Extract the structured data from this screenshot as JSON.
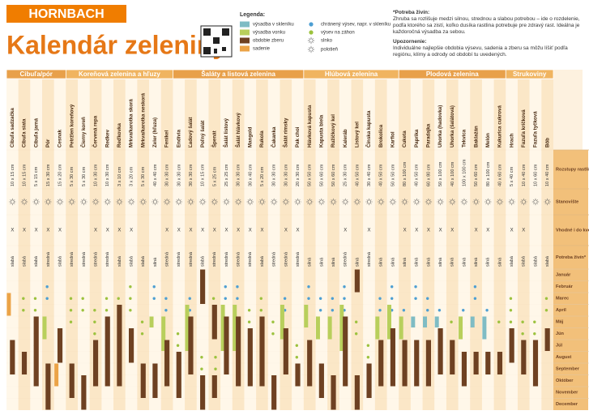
{
  "header": {
    "brand": "HORNBACH",
    "title": "Kalendár zeleniny"
  },
  "legend": {
    "title": "Legenda:",
    "items": [
      {
        "label": "výsadba v skleníku",
        "color": "#7fbcc4"
      },
      {
        "label": "výsadba vonku",
        "color": "#b8cf5c"
      },
      {
        "label": "obdobie zberu",
        "color": "#6e4122"
      },
      {
        "label": "sadenie",
        "color": "#eba347"
      },
      {
        "label": "chránený výsev, napr. v skleníku",
        "color": "#4d9fd3"
      },
      {
        "label": "výsev na záhon",
        "color": "#9cc23e"
      }
    ],
    "icons": [
      "slnko",
      "polotieň"
    ]
  },
  "notes": {
    "need_title": "*Potreba živín:",
    "need_text": "Zhruba sa rozlišuje medzi silnou, strednou a slabou potrebou – ide o rozdelenie, podľa ktorého sa zistí, koľko dusíka rastlina potrebuje pre zdravý rast. Ideálna je každoročná výsadba za sebou.",
    "warn_title": "Upozornenie:",
    "warn_text": "Individuálne najlepšie obdobia výsevu, sadenia a zberu sa môžu líšiť podľa regiónu, klímy a odrody od období tu uvedených."
  },
  "rows": {
    "spacing": "Rozstupy rastlín (spon)",
    "location": "Stanovište",
    "pot": "Vhodné i do kvetináča (X = áno)",
    "need": "Potreba živín*",
    "months": [
      "Január",
      "Február",
      "Marec",
      "Apríl",
      "Máj",
      "Jún",
      "Júl",
      "August",
      "September",
      "Október",
      "November",
      "December"
    ]
  },
  "groups": [
    {
      "name": "Cibuľa/pór",
      "columns": [
        {
          "name": "Cibuľa sadzačka",
          "spacing": "10 x 15 cm",
          "pot": "X",
          "need": "slabá",
          "periods": [
            [
              3,
              3,
              4
            ],
            [
              2,
              7,
              9
            ]
          ]
        },
        {
          "name": "Cibuľa siata",
          "spacing": "10 x 15 cm",
          "pot": "X",
          "need": "slabá",
          "periods": [
            [
              5,
              3,
              4
            ],
            [
              2,
              8,
              9
            ]
          ]
        },
        {
          "name": "Cibuľa jarná",
          "spacing": "5 x 15 cm",
          "pot": "X",
          "need": "slabá",
          "periods": [
            [
              5,
              3,
              8
            ],
            [
              2,
              5,
              10
            ]
          ]
        },
        {
          "name": "Pór",
          "spacing": "15 x 30 cm",
          "pot": "X",
          "need": "stredná",
          "periods": [
            [
              4,
              2,
              3
            ],
            [
              1,
              5,
              6
            ],
            [
              2,
              9,
              12
            ]
          ]
        },
        {
          "name": "Cesnak",
          "spacing": "15 x 20 cm",
          "pot": "X",
          "need": "slabá",
          "periods": [
            [
              3,
              9,
              10
            ],
            [
              2,
              6,
              8
            ]
          ]
        }
      ]
    },
    {
      "name": "Koreňová zelenina a hľuzy",
      "columns": [
        {
          "name": "Petržlen koreňový",
          "spacing": "5 x 30 cm",
          "pot": null,
          "need": "stredná",
          "periods": [
            [
              5,
              3,
              5
            ],
            [
              2,
              9,
              11
            ]
          ]
        },
        {
          "name": "Čierny koreň",
          "spacing": "5 x 30 cm",
          "pot": null,
          "need": "stredná",
          "periods": [
            [
              5,
              3,
              4
            ],
            [
              2,
              10,
              12
            ]
          ]
        },
        {
          "name": "Červená repa",
          "spacing": "10 x 30 cm",
          "pot": "X",
          "need": "stredná",
          "periods": [
            [
              5,
              4,
              6
            ],
            [
              2,
              7,
              10
            ]
          ]
        },
        {
          "name": "Redkev",
          "spacing": "10 x 30 cm",
          "pot": "X",
          "need": "stredná",
          "periods": [
            [
              5,
              3,
              8
            ],
            [
              2,
              5,
              10
            ]
          ]
        },
        {
          "name": "Reďkovka",
          "spacing": "3 x 10 cm",
          "pot": "X",
          "need": "slabá",
          "periods": [
            [
              5,
              3,
              9
            ],
            [
              2,
              4,
              10
            ]
          ]
        },
        {
          "name": "Mrkva/karotka skorá",
          "spacing": "3 x 20 cm",
          "pot": "X",
          "need": "slabá",
          "periods": [
            [
              5,
              2,
              4
            ],
            [
              2,
              6,
              8
            ]
          ]
        },
        {
          "name": "Mrkva/karotka neskorá",
          "spacing": "5 x 30 cm",
          "pot": null,
          "need": "slabá",
          "periods": [
            [
              5,
              5,
              6
            ],
            [
              2,
              9,
              11
            ]
          ]
        },
        {
          "name": "Zeler (hľuza)",
          "spacing": "40 x 40 cm",
          "pot": null,
          "need": "silná",
          "periods": [
            [
              4,
              2,
              3
            ],
            [
              1,
              5,
              5
            ],
            [
              2,
              9,
              11
            ]
          ]
        },
        {
          "name": "Fenikel",
          "spacing": "30 x 30 cm",
          "pot": "X",
          "need": "stredná",
          "periods": [
            [
              4,
              3,
              4
            ],
            [
              1,
              5,
              7
            ],
            [
              2,
              7,
              10
            ]
          ]
        }
      ]
    },
    {
      "name": "Šaláty a listová zelenina",
      "columns": [
        {
          "name": "Endívia",
          "spacing": "30 x 30 cm",
          "pot": "X",
          "need": "stredná",
          "periods": [
            [
              5,
              6,
              7
            ],
            [
              2,
              8,
              11
            ]
          ]
        },
        {
          "name": "Ľadový šalát",
          "spacing": "30 x 30 cm",
          "pot": "X",
          "need": "stredná",
          "periods": [
            [
              4,
              3,
              4
            ],
            [
              1,
              4,
              7
            ],
            [
              2,
              5,
              9
            ]
          ]
        },
        {
          "name": "Poľný šalát",
          "spacing": "10 x 15 cm",
          "pot": "X",
          "need": "slabá",
          "periods": [
            [
              5,
              8,
              9
            ],
            [
              2,
              10,
              12
            ],
            [
              2,
              1,
              3
            ]
          ]
        },
        {
          "name": "Špenát",
          "spacing": "5 x 25 cm",
          "pot": "X",
          "need": "stredná",
          "periods": [
            [
              5,
              3,
              4
            ],
            [
              5,
              8,
              9
            ],
            [
              2,
              4,
              6
            ],
            [
              2,
              10,
              11
            ]
          ]
        },
        {
          "name": "Šalát listový",
          "spacing": "25 x 25 cm",
          "pot": "X",
          "need": "stredná",
          "periods": [
            [
              4,
              2,
              3
            ],
            [
              1,
              4,
              7
            ],
            [
              2,
              5,
              9
            ]
          ]
        },
        {
          "name": "Šalát hlávkový",
          "spacing": "30 x 30 cm",
          "pot": "X",
          "need": "stredná",
          "periods": [
            [
              4,
              2,
              3
            ],
            [
              1,
              4,
              7
            ],
            [
              2,
              5,
              10
            ]
          ]
        },
        {
          "name": "Mangold",
          "spacing": "30 x 40 cm",
          "pot": "X",
          "need": "stredná",
          "periods": [
            [
              5,
              4,
              6
            ],
            [
              2,
              6,
              10
            ]
          ]
        },
        {
          "name": "Rukola",
          "spacing": "5 x 20 cm",
          "pot": "X",
          "need": "slabá",
          "periods": [
            [
              5,
              3,
              8
            ],
            [
              2,
              5,
              10
            ]
          ]
        },
        {
          "name": "Čakanka",
          "spacing": "30 x 30 cm",
          "pot": null,
          "need": "stredná",
          "periods": [
            [
              5,
              5,
              6
            ],
            [
              2,
              10,
              12
            ]
          ]
        },
        {
          "name": "Šalát rímsky",
          "spacing": "30 x 30 cm",
          "pot": "X",
          "need": "stredná",
          "periods": [
            [
              4,
              3,
              4
            ],
            [
              1,
              4,
              6
            ],
            [
              2,
              6,
              9
            ]
          ]
        },
        {
          "name": "Pak choi",
          "spacing": "20 x 30 cm",
          "pot": "X",
          "need": "stredná",
          "periods": [
            [
              5,
              7,
              8
            ],
            [
              2,
              9,
              10
            ]
          ]
        }
      ]
    },
    {
      "name": "Hlúbová zelenina",
      "columns": [
        {
          "name": "Hlávková kapusta",
          "spacing": "50 x 50 cm",
          "pot": null,
          "need": "silná",
          "periods": [
            [
              4,
              2,
              3
            ],
            [
              1,
              4,
              5
            ],
            [
              2,
              7,
              10
            ]
          ]
        },
        {
          "name": "Kapusta biela",
          "spacing": "50 x 60 cm",
          "pot": null,
          "need": "silná",
          "periods": [
            [
              4,
              3,
              4
            ],
            [
              1,
              5,
              6
            ],
            [
              2,
              9,
              11
            ]
          ]
        },
        {
          "name": "Ružičkový kel",
          "spacing": "50 x 60 cm",
          "pot": null,
          "need": "silná",
          "periods": [
            [
              4,
              3,
              4
            ],
            [
              1,
              5,
              6
            ],
            [
              2,
              10,
              12
            ]
          ]
        },
        {
          "name": "Kaleráb",
          "spacing": "25 x 30 cm",
          "pot": "X",
          "need": "stredná",
          "periods": [
            [
              4,
              2,
              4
            ],
            [
              1,
              4,
              7
            ],
            [
              2,
              5,
              10
            ]
          ]
        },
        {
          "name": "Listový kel",
          "spacing": "40 x 50 cm",
          "pot": null,
          "need": "silná",
          "periods": [
            [
              5,
              5,
              6
            ],
            [
              2,
              10,
              12
            ],
            [
              2,
              1,
              2
            ]
          ]
        },
        {
          "name": "Čínska kapusta",
          "spacing": "30 x 40 cm",
          "pot": "X",
          "need": "stredná",
          "periods": [
            [
              5,
              7,
              8
            ],
            [
              2,
              9,
              11
            ]
          ]
        },
        {
          "name": "Brokolica",
          "spacing": "40 x 50 cm",
          "pot": null,
          "need": "silná",
          "periods": [
            [
              4,
              3,
              4
            ],
            [
              1,
              5,
              6
            ],
            [
              2,
              7,
              10
            ]
          ]
        },
        {
          "name": "Karfiol",
          "spacing": "50 x 50 cm",
          "pot": null,
          "need": "silná",
          "periods": [
            [
              4,
              2,
              4
            ],
            [
              1,
              4,
              6
            ],
            [
              2,
              6,
              10
            ]
          ]
        }
      ]
    },
    {
      "name": "Plodová zelenina",
      "columns": [
        {
          "name": "Cuketa",
          "spacing": "80 x 100 cm",
          "pot": "X",
          "need": "silná",
          "periods": [
            [
              4,
              4,
              4
            ],
            [
              1,
              5,
              6
            ],
            [
              2,
              7,
              10
            ]
          ]
        },
        {
          "name": "Paprika",
          "spacing": "40 x 50 cm",
          "pot": "X",
          "need": "silná",
          "periods": [
            [
              4,
              2,
              3
            ],
            [
              0,
              5,
              5
            ],
            [
              2,
              7,
              10
            ]
          ]
        },
        {
          "name": "Paradajka",
          "spacing": "60 x 80 cm",
          "pot": "X",
          "need": "silná",
          "periods": [
            [
              4,
              3,
              4
            ],
            [
              0,
              5,
              5
            ],
            [
              2,
              7,
              10
            ]
          ]
        },
        {
          "name": "Uhorka (hadovka)",
          "spacing": "50 x 100 cm",
          "pot": "X",
          "need": "silná",
          "periods": [
            [
              4,
              4,
              4
            ],
            [
              0,
              5,
              5
            ],
            [
              2,
              6,
              9
            ]
          ]
        },
        {
          "name": "Uhorka (šalátová)",
          "spacing": "40 x 100 cm",
          "pot": "X",
          "need": "silná",
          "periods": [
            [
              5,
              5,
              5
            ],
            [
              2,
              7,
              9
            ]
          ]
        },
        {
          "name": "Tekvica",
          "spacing": "100 x 100 cm",
          "pot": null,
          "need": "silná",
          "periods": [
            [
              4,
              4,
              4
            ],
            [
              1,
              5,
              6
            ],
            [
              2,
              8,
              10
            ]
          ]
        },
        {
          "name": "Baklažán",
          "spacing": "50 x 60 cm",
          "pot": "X",
          "need": "silná",
          "periods": [
            [
              4,
              2,
              3
            ],
            [
              0,
              5,
              5
            ],
            [
              2,
              8,
              9
            ]
          ]
        },
        {
          "name": "Melón",
          "spacing": "80 x 100 cm",
          "pot": "X",
          "need": "silná",
          "periods": [
            [
              4,
              4,
              4
            ],
            [
              0,
              5,
              6
            ],
            [
              2,
              8,
              9
            ]
          ]
        },
        {
          "name": "Kukurica cukrová",
          "spacing": "40 x 60 cm",
          "pot": null,
          "need": "silná",
          "periods": [
            [
              5,
              5,
              5
            ],
            [
              2,
              8,
              9
            ]
          ]
        }
      ]
    },
    {
      "name": "Strukoviny",
      "columns": [
        {
          "name": "Hrach",
          "spacing": "5 x 40 cm",
          "pot": "X",
          "need": "slabá",
          "periods": [
            [
              5,
              3,
              5
            ],
            [
              2,
              6,
              8
            ]
          ]
        },
        {
          "name": "Fazuľa kríčková",
          "spacing": "10 x 40 cm",
          "pot": "X",
          "need": "slabá",
          "periods": [
            [
              5,
              5,
              6
            ],
            [
              2,
              7,
              9
            ]
          ]
        },
        {
          "name": "Fazuľa tyčková",
          "spacing": "10 x 60 cm",
          "pot": null,
          "need": "slabá",
          "periods": [
            [
              5,
              5,
              6
            ],
            [
              2,
              7,
              10
            ]
          ]
        },
        {
          "name": "Bôb",
          "spacing": "10 x 40 cm",
          "pot": null,
          "need": "slabá",
          "periods": [
            [
              5,
              3,
              4
            ],
            [
              2,
              6,
              7
            ]
          ]
        }
      ]
    }
  ]
}
